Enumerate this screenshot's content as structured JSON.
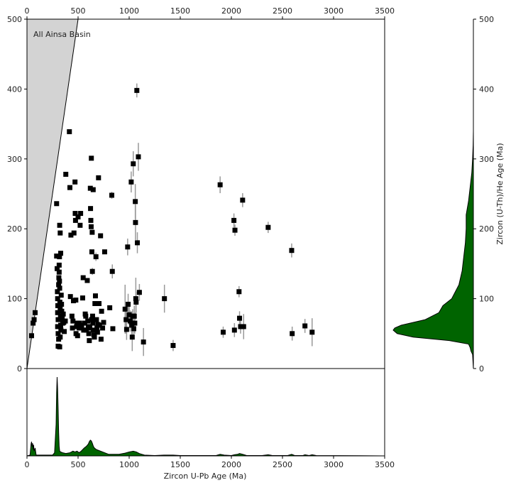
{
  "chart_data": [
    {
      "panel": "main",
      "type": "scatter",
      "title": "",
      "annotation": "All Ainsa Basin",
      "xlabel": "",
      "ylabel": "",
      "xlim": [
        0,
        3500
      ],
      "ylim": [
        0,
        500
      ],
      "x_ticks": [
        0,
        500,
        1000,
        1500,
        2000,
        2500,
        3000,
        3500
      ],
      "x_tick_labels_top": [
        "0",
        "500",
        "1000",
        "1500",
        "2000",
        "2500",
        "3000",
        "3500"
      ],
      "y_ticks": [
        0,
        100,
        200,
        300,
        400,
        500
      ],
      "y_tick_labels": [
        "0",
        "100",
        "200",
        "300",
        "400",
        "500"
      ],
      "marker": "square",
      "marker_color": "#000000",
      "error_bar_color": "#999999",
      "shaded_region_color": "#d3d3d3",
      "shaded_region": "area where (U-Th)/He age exceeds U-Pb age (line y = x)",
      "grid": false,
      "points": [
        {
          "x": 45,
          "y": 47,
          "err": 0
        },
        {
          "x": 60,
          "y": 65,
          "err": 0
        },
        {
          "x": 70,
          "y": 70,
          "err": 0
        },
        {
          "x": 80,
          "y": 80,
          "err": 0
        },
        {
          "x": 290,
          "y": 236,
          "err": 0
        },
        {
          "x": 290,
          "y": 161,
          "err": 0
        },
        {
          "x": 295,
          "y": 143,
          "err": 0
        },
        {
          "x": 298,
          "y": 110,
          "err": 0
        },
        {
          "x": 300,
          "y": 100,
          "err": 0
        },
        {
          "x": 302,
          "y": 90,
          "err": 0
        },
        {
          "x": 300,
          "y": 80,
          "err": 0
        },
        {
          "x": 305,
          "y": 70,
          "err": 0
        },
        {
          "x": 300,
          "y": 60,
          "err": 0
        },
        {
          "x": 305,
          "y": 50,
          "err": 0
        },
        {
          "x": 310,
          "y": 120,
          "err": 0
        },
        {
          "x": 312,
          "y": 130,
          "err": 0
        },
        {
          "x": 315,
          "y": 148,
          "err": 0
        },
        {
          "x": 318,
          "y": 160,
          "err": 0
        },
        {
          "x": 320,
          "y": 115,
          "err": 0
        },
        {
          "x": 322,
          "y": 95,
          "err": 0
        },
        {
          "x": 325,
          "y": 85,
          "err": 0
        },
        {
          "x": 328,
          "y": 75,
          "err": 0
        },
        {
          "x": 330,
          "y": 62,
          "err": 0
        },
        {
          "x": 332,
          "y": 55,
          "err": 0
        },
        {
          "x": 305,
          "y": 32,
          "err": 0
        },
        {
          "x": 320,
          "y": 31,
          "err": 0
        },
        {
          "x": 325,
          "y": 45,
          "err": 0
        },
        {
          "x": 310,
          "y": 42,
          "err": 0
        },
        {
          "x": 320,
          "y": 205,
          "err": 0
        },
        {
          "x": 325,
          "y": 194,
          "err": 0
        },
        {
          "x": 330,
          "y": 165,
          "err": 0
        },
        {
          "x": 315,
          "y": 138,
          "err": 0
        },
        {
          "x": 318,
          "y": 125,
          "err": 0
        },
        {
          "x": 335,
          "y": 105,
          "err": 0
        },
        {
          "x": 338,
          "y": 92,
          "err": 0
        },
        {
          "x": 340,
          "y": 82,
          "err": 0
        },
        {
          "x": 345,
          "y": 72,
          "err": 0
        },
        {
          "x": 350,
          "y": 65,
          "err": 0
        },
        {
          "x": 355,
          "y": 78,
          "err": 0
        },
        {
          "x": 360,
          "y": 66,
          "err": 0
        },
        {
          "x": 365,
          "y": 53,
          "err": 0
        },
        {
          "x": 380,
          "y": 278,
          "err": 0
        },
        {
          "x": 375,
          "y": 68,
          "err": 0
        },
        {
          "x": 415,
          "y": 339,
          "err": 0
        },
        {
          "x": 420,
          "y": 259,
          "err": 0
        },
        {
          "x": 430,
          "y": 191,
          "err": 0
        },
        {
          "x": 425,
          "y": 103,
          "err": 0
        },
        {
          "x": 440,
          "y": 75,
          "err": 0
        },
        {
          "x": 445,
          "y": 58,
          "err": 0
        },
        {
          "x": 450,
          "y": 68,
          "err": 2
        },
        {
          "x": 455,
          "y": 97,
          "err": 0
        },
        {
          "x": 460,
          "y": 194,
          "err": 0
        },
        {
          "x": 470,
          "y": 267,
          "err": 0
        },
        {
          "x": 472,
          "y": 222,
          "err": 0
        },
        {
          "x": 475,
          "y": 212,
          "err": 0
        },
        {
          "x": 478,
          "y": 98,
          "err": 0
        },
        {
          "x": 480,
          "y": 50,
          "err": 0
        },
        {
          "x": 485,
          "y": 60,
          "err": 0
        },
        {
          "x": 490,
          "y": 65,
          "err": 0
        },
        {
          "x": 495,
          "y": 47,
          "err": 0
        },
        {
          "x": 500,
          "y": 217,
          "err": 0
        },
        {
          "x": 510,
          "y": 58,
          "err": 0
        },
        {
          "x": 515,
          "y": 65,
          "err": 0
        },
        {
          "x": 520,
          "y": 205,
          "err": 0
        },
        {
          "x": 525,
          "y": 222,
          "err": 0
        },
        {
          "x": 535,
          "y": 62,
          "err": 0
        },
        {
          "x": 545,
          "y": 101,
          "err": 0
        },
        {
          "x": 550,
          "y": 130,
          "err": 0
        },
        {
          "x": 555,
          "y": 55,
          "err": 0
        },
        {
          "x": 565,
          "y": 65,
          "err": 0
        },
        {
          "x": 570,
          "y": 78,
          "err": 0
        },
        {
          "x": 575,
          "y": 75,
          "err": 0
        },
        {
          "x": 580,
          "y": 55,
          "err": 0
        },
        {
          "x": 590,
          "y": 126,
          "err": 0
        },
        {
          "x": 595,
          "y": 68,
          "err": 0
        },
        {
          "x": 600,
          "y": 60,
          "err": 0
        },
        {
          "x": 605,
          "y": 50,
          "err": 0
        },
        {
          "x": 610,
          "y": 40,
          "err": 0
        },
        {
          "x": 615,
          "y": 58,
          "err": 0
        },
        {
          "x": 620,
          "y": 258,
          "err": 0
        },
        {
          "x": 622,
          "y": 229,
          "err": 0
        },
        {
          "x": 625,
          "y": 212,
          "err": 0
        },
        {
          "x": 628,
          "y": 203,
          "err": 0
        },
        {
          "x": 630,
          "y": 301,
          "err": 0
        },
        {
          "x": 632,
          "y": 70,
          "err": 0
        },
        {
          "x": 635,
          "y": 167,
          "err": 0
        },
        {
          "x": 638,
          "y": 195,
          "err": 0
        },
        {
          "x": 640,
          "y": 139,
          "err": 5
        },
        {
          "x": 642,
          "y": 75,
          "err": 0
        },
        {
          "x": 645,
          "y": 65,
          "err": 0
        },
        {
          "x": 648,
          "y": 256,
          "err": 0
        },
        {
          "x": 650,
          "y": 55,
          "err": 0
        },
        {
          "x": 655,
          "y": 48,
          "err": 0
        },
        {
          "x": 660,
          "y": 45,
          "err": 0
        },
        {
          "x": 665,
          "y": 93,
          "err": 0
        },
        {
          "x": 670,
          "y": 104,
          "err": 0
        },
        {
          "x": 675,
          "y": 160,
          "err": 6
        },
        {
          "x": 680,
          "y": 70,
          "err": 0
        },
        {
          "x": 685,
          "y": 58,
          "err": 0
        },
        {
          "x": 690,
          "y": 52,
          "err": 0
        },
        {
          "x": 695,
          "y": 63,
          "err": 0
        },
        {
          "x": 700,
          "y": 273,
          "err": 0
        },
        {
          "x": 705,
          "y": 93,
          "err": 0
        },
        {
          "x": 710,
          "y": 62,
          "err": 0
        },
        {
          "x": 720,
          "y": 190,
          "err": 0
        },
        {
          "x": 725,
          "y": 42,
          "err": 0
        },
        {
          "x": 730,
          "y": 82,
          "err": 0
        },
        {
          "x": 740,
          "y": 58,
          "err": 0
        },
        {
          "x": 750,
          "y": 66,
          "err": 0
        },
        {
          "x": 760,
          "y": 167,
          "err": 0
        },
        {
          "x": 810,
          "y": 87,
          "err": 0
        },
        {
          "x": 830,
          "y": 248,
          "err": 5
        },
        {
          "x": 835,
          "y": 139,
          "err": 10
        },
        {
          "x": 840,
          "y": 57,
          "err": 0
        },
        {
          "x": 960,
          "y": 85,
          "err": 35
        },
        {
          "x": 970,
          "y": 70,
          "err": 20
        },
        {
          "x": 975,
          "y": 56,
          "err": 15
        },
        {
          "x": 985,
          "y": 174,
          "err": 12
        },
        {
          "x": 990,
          "y": 92,
          "err": 15
        },
        {
          "x": 1000,
          "y": 77,
          "err": 15
        },
        {
          "x": 1010,
          "y": 68,
          "err": 15
        },
        {
          "x": 1020,
          "y": 267,
          "err": 15
        },
        {
          "x": 1025,
          "y": 62,
          "err": 20
        },
        {
          "x": 1030,
          "y": 45,
          "err": 20
        },
        {
          "x": 1035,
          "y": 75,
          "err": 10
        },
        {
          "x": 1040,
          "y": 293,
          "err": 18
        },
        {
          "x": 1045,
          "y": 57,
          "err": 15
        },
        {
          "x": 1050,
          "y": 75,
          "err": 15
        },
        {
          "x": 1055,
          "y": 65,
          "err": 15
        },
        {
          "x": 1060,
          "y": 239,
          "err": 25
        },
        {
          "x": 1062,
          "y": 209,
          "err": 25
        },
        {
          "x": 1065,
          "y": 100,
          "err": 30
        },
        {
          "x": 1068,
          "y": 95,
          "err": 15
        },
        {
          "x": 1075,
          "y": 398,
          "err": 10
        },
        {
          "x": 1080,
          "y": 180,
          "err": 15
        },
        {
          "x": 1090,
          "y": 303,
          "err": 20
        },
        {
          "x": 1100,
          "y": 109,
          "err": 12
        },
        {
          "x": 1140,
          "y": 38,
          "err": 20
        },
        {
          "x": 1345,
          "y": 100,
          "err": 20
        },
        {
          "x": 1430,
          "y": 33,
          "err": 8
        },
        {
          "x": 1890,
          "y": 263,
          "err": 12
        },
        {
          "x": 1920,
          "y": 52,
          "err": 8
        },
        {
          "x": 2025,
          "y": 212,
          "err": 10
        },
        {
          "x": 2030,
          "y": 55,
          "err": 10
        },
        {
          "x": 2035,
          "y": 198,
          "err": 8
        },
        {
          "x": 2075,
          "y": 110,
          "err": 8
        },
        {
          "x": 2080,
          "y": 72,
          "err": 10
        },
        {
          "x": 2090,
          "y": 60,
          "err": 10
        },
        {
          "x": 2110,
          "y": 241,
          "err": 10
        },
        {
          "x": 2120,
          "y": 60,
          "err": 18
        },
        {
          "x": 2360,
          "y": 202,
          "err": 8
        },
        {
          "x": 2590,
          "y": 169,
          "err": 10
        },
        {
          "x": 2595,
          "y": 50,
          "err": 10
        },
        {
          "x": 2720,
          "y": 61,
          "err": 10
        },
        {
          "x": 2790,
          "y": 52,
          "err": 20
        }
      ]
    },
    {
      "panel": "right",
      "type": "area",
      "title": "",
      "description": "KDE of Zircon (U-Th)/He ages",
      "ylabel": "Zircon (U-Th)/He Age (Ma)",
      "ylim": [
        0,
        500
      ],
      "y_ticks": [
        0,
        100,
        200,
        300,
        400,
        500
      ],
      "y_tick_labels": [
        "0",
        "100",
        "200",
        "300",
        "400",
        "500"
      ],
      "fill_color": "#006400",
      "y": [
        0,
        20,
        25,
        30,
        35,
        40,
        45,
        50,
        55,
        58,
        62,
        70,
        80,
        90,
        100,
        120,
        140,
        160,
        180,
        200,
        220,
        240,
        260,
        280,
        300,
        320,
        340,
        500
      ],
      "density": [
        0,
        0.01,
        0.03,
        0.04,
        0.06,
        0.3,
        0.75,
        0.95,
        1.0,
        0.98,
        0.9,
        0.6,
        0.43,
        0.38,
        0.27,
        0.18,
        0.14,
        0.12,
        0.1,
        0.09,
        0.09,
        0.06,
        0.04,
        0.02,
        0.01,
        0.003,
        0,
        0
      ]
    },
    {
      "panel": "bottom",
      "type": "area",
      "title": "",
      "description": "KDE of Zircon U-Pb ages",
      "xlabel": "Zircon U-Pb Age (Ma)",
      "xlim": [
        0,
        3500
      ],
      "x_ticks": [
        0,
        500,
        1000,
        1500,
        2000,
        2500,
        3000,
        3500
      ],
      "x_tick_labels": [
        "0",
        "500",
        "1000",
        "1500",
        "2000",
        "2500",
        "3000",
        "3500"
      ],
      "fill_color": "#006400",
      "x": [
        0,
        30,
        40,
        45,
        50,
        55,
        60,
        65,
        70,
        80,
        90,
        250,
        270,
        285,
        290,
        295,
        300,
        305,
        310,
        315,
        320,
        330,
        350,
        380,
        420,
        450,
        470,
        490,
        510,
        530,
        560,
        580,
        600,
        610,
        620,
        630,
        640,
        650,
        660,
        680,
        700,
        720,
        760,
        800,
        900,
        960,
        1000,
        1040,
        1070,
        1100,
        1150,
        1250,
        1340,
        1430,
        1500,
        1850,
        1890,
        1930,
        2000,
        2030,
        2060,
        2080,
        2110,
        2150,
        2300,
        2360,
        2400,
        2550,
        2590,
        2620,
        2700,
        2720,
        2760,
        2790,
        2830,
        3500
      ],
      "density": [
        0,
        0.01,
        0.15,
        0.18,
        0.12,
        0.16,
        0.08,
        0.14,
        0.06,
        0.1,
        0.01,
        0.01,
        0.04,
        0.4,
        0.8,
        1.0,
        0.85,
        0.6,
        0.3,
        0.12,
        0.06,
        0.05,
        0.04,
        0.03,
        0.04,
        0.06,
        0.05,
        0.06,
        0.04,
        0.06,
        0.1,
        0.12,
        0.15,
        0.18,
        0.2,
        0.19,
        0.16,
        0.12,
        0.1,
        0.08,
        0.07,
        0.06,
        0.04,
        0.02,
        0.02,
        0.035,
        0.05,
        0.06,
        0.05,
        0.03,
        0.01,
        0.005,
        0.01,
        0.01,
        0.005,
        0.005,
        0.02,
        0.01,
        0.005,
        0.015,
        0.02,
        0.03,
        0.02,
        0.005,
        0.005,
        0.015,
        0.005,
        0.005,
        0.02,
        0.005,
        0.005,
        0.015,
        0.005,
        0.015,
        0.005,
        0
      ]
    }
  ]
}
